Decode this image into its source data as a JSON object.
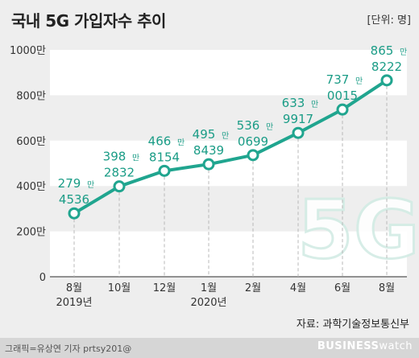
{
  "header": {
    "title": "국내 5G 가입자수 추이",
    "unit": "[단위: 명]"
  },
  "watermark": "5G",
  "source": "자료: 과학기술정보통신부",
  "credit": "그래픽=유상연 기자 prtsy201@",
  "brand": {
    "part1": "BUSINESS",
    "part2": "watch"
  },
  "colors": {
    "line": "#20a58f",
    "label": "#1a9c86",
    "marker_fill": "#ffffff",
    "axis_text": "#333333",
    "background": "#eeeeee",
    "stripe": "#ffffff"
  },
  "chart_data": {
    "type": "line",
    "title": "국내 5G 가입자수 추이",
    "categories": [
      "8월",
      "10월",
      "12월",
      "1월",
      "2월",
      "4월",
      "6월",
      "8월"
    ],
    "year_labels": [
      {
        "index": 0,
        "text": "2019년"
      },
      {
        "index": 3,
        "text": "2020년"
      }
    ],
    "values": [
      2794536,
      3982832,
      4668154,
      4958439,
      5360699,
      6339917,
      7370015,
      8658222
    ],
    "data_labels": [
      {
        "top": "279",
        "man": "만",
        "bottom": "4536"
      },
      {
        "top": "398",
        "man": "만",
        "bottom": "2832"
      },
      {
        "top": "466",
        "man": "만",
        "bottom": "8154"
      },
      {
        "top": "495",
        "man": "만",
        "bottom": "8439"
      },
      {
        "top": "536",
        "man": "만",
        "bottom": "0699"
      },
      {
        "top": "633",
        "man": "만",
        "bottom": "9917"
      },
      {
        "top": "737",
        "man": "만",
        "bottom": "0015"
      },
      {
        "top": "865",
        "man": "만",
        "bottom": "8222"
      }
    ],
    "y_ticks": [
      {
        "value": 0,
        "label": "0"
      },
      {
        "value": 2000000,
        "label": "200만"
      },
      {
        "value": 4000000,
        "label": "400만"
      },
      {
        "value": 6000000,
        "label": "600만"
      },
      {
        "value": 8000000,
        "label": "800만"
      },
      {
        "value": 10000000,
        "label": "1000만"
      }
    ],
    "ylim": [
      0,
      10000000
    ],
    "grid": false,
    "legend": "none"
  }
}
